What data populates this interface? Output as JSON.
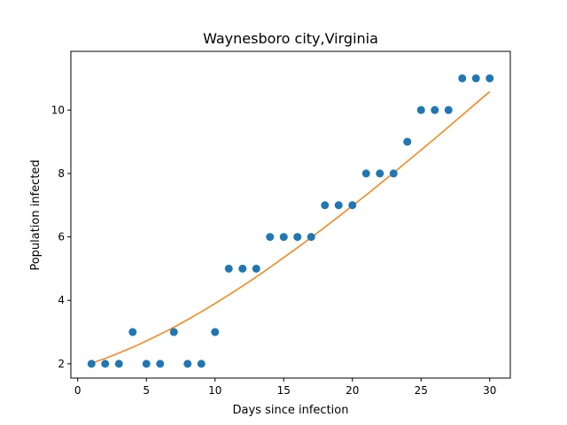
{
  "chart_data": {
    "type": "scatter",
    "title": "Waynesboro city,Virginia",
    "xlabel": "Days since infection",
    "ylabel": "Population infected",
    "xlim": [
      -0.5,
      31.5
    ],
    "ylim": [
      1.55,
      11.85
    ],
    "xticks": [
      0,
      5,
      10,
      15,
      20,
      25,
      30
    ],
    "yticks": [
      2,
      4,
      6,
      8,
      10
    ],
    "grid": false,
    "series": [
      {
        "kind": "scatter",
        "color": "#1f77b4",
        "x": [
          1,
          2,
          3,
          4,
          5,
          6,
          7,
          8,
          9,
          10,
          11,
          12,
          13,
          14,
          15,
          16,
          17,
          18,
          19,
          20,
          21,
          22,
          23,
          24,
          25,
          26,
          27,
          28,
          29,
          30
        ],
        "y": [
          2,
          2,
          2,
          3,
          2,
          2,
          3,
          2,
          2,
          3,
          5,
          5,
          5,
          6,
          6,
          6,
          6,
          7,
          7,
          7,
          8,
          8,
          8,
          9,
          10,
          10,
          10,
          11,
          11,
          11
        ]
      },
      {
        "kind": "line",
        "color": "#ff7f0e",
        "x": [
          1,
          2,
          3,
          4,
          5,
          6,
          7,
          8,
          9,
          10,
          11,
          12,
          13,
          14,
          15,
          16,
          17,
          18,
          19,
          20,
          21,
          22,
          23,
          24,
          25,
          26,
          27,
          28,
          29,
          30
        ],
        "y": [
          2.02,
          2.17,
          2.34,
          2.52,
          2.72,
          2.93,
          3.15,
          3.39,
          3.64,
          3.9,
          4.17,
          4.45,
          4.74,
          5.04,
          5.35,
          5.66,
          5.98,
          6.31,
          6.64,
          6.98,
          7.32,
          7.67,
          8.02,
          8.38,
          8.74,
          9.1,
          9.47,
          9.84,
          10.21,
          10.58
        ]
      }
    ]
  }
}
